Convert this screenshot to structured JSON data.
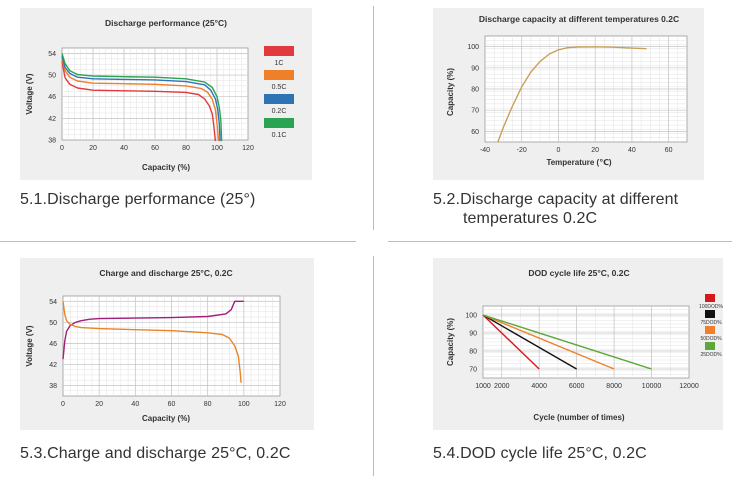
{
  "captions": {
    "c1": "5.1.Discharge performance (25°)",
    "c2_line1": "5.2.Discharge capacity at different",
    "c2_line2": "temperatures 0.2C",
    "c3": "5.3.Charge and discharge 25°C, 0.2C",
    "c4": "5.4.DOD cycle life 25°C, 0.2C"
  },
  "chart_data": [
    {
      "type": "line",
      "title": "Discharge performance (25°C)",
      "xlabel": "Capacity (%)",
      "ylabel": "Voltage (V)",
      "xlim": [
        0,
        120
      ],
      "ylim": [
        38,
        55
      ],
      "xticks": [
        0,
        20,
        40,
        60,
        80,
        100,
        120
      ],
      "yticks": [
        38,
        42,
        46,
        50,
        54
      ],
      "grid": true,
      "legend_position": "right",
      "series": [
        {
          "name": "1C",
          "color": "#e03a3e",
          "x": [
            0,
            2,
            5,
            10,
            20,
            40,
            60,
            80,
            88,
            92,
            95,
            97,
            98,
            99
          ],
          "y": [
            52.5,
            49.5,
            48.3,
            47.6,
            47.2,
            47.1,
            47.0,
            46.8,
            46.4,
            45.6,
            44.3,
            42.8,
            40.5,
            37.8
          ]
        },
        {
          "name": "0.5C",
          "color": "#f07f2a",
          "x": [
            0,
            2,
            5,
            10,
            20,
            40,
            60,
            80,
            90,
            94,
            97,
            99,
            100,
            101
          ],
          "y": [
            53.0,
            50.8,
            49.6,
            48.9,
            48.5,
            48.4,
            48.3,
            48.0,
            47.5,
            46.8,
            45.5,
            43.6,
            41.0,
            37.8
          ]
        },
        {
          "name": "0.2C",
          "color": "#2e74b5",
          "x": [
            0,
            2,
            5,
            10,
            20,
            40,
            60,
            80,
            92,
            96,
            99,
            100.5,
            101.5,
            102
          ],
          "y": [
            53.5,
            51.4,
            50.3,
            49.6,
            49.3,
            49.2,
            49.1,
            48.8,
            48.2,
            47.2,
            45.6,
            43.6,
            41.0,
            37.8
          ]
        },
        {
          "name": "0.1C",
          "color": "#2aa352",
          "x": [
            0,
            2,
            5,
            10,
            20,
            40,
            60,
            80,
            92,
            97,
            100,
            101.5,
            102.5,
            103
          ],
          "y": [
            54.0,
            52.1,
            50.8,
            50.1,
            49.8,
            49.7,
            49.6,
            49.3,
            48.7,
            47.7,
            46.0,
            44.0,
            41.5,
            37.8
          ]
        }
      ]
    },
    {
      "type": "line",
      "title": "Discharge capacity at different temperatures 0.2C",
      "xlabel": "Temperature (℃)",
      "ylabel": "Capacity (%)",
      "xlim": [
        -40,
        70
      ],
      "ylim": [
        55,
        105
      ],
      "xticks": [
        -40,
        -20,
        0,
        20,
        40,
        60
      ],
      "yticks": [
        60,
        70,
        80,
        90,
        100
      ],
      "grid": true,
      "series": [
        {
          "color": "#c9a05a",
          "x": [
            -33,
            -30,
            -25,
            -20,
            -15,
            -10,
            -5,
            0,
            5,
            10,
            20,
            30,
            40,
            48
          ],
          "y": [
            55,
            62,
            72,
            81,
            88,
            93,
            96.5,
            98.5,
            99.5,
            99.8,
            99.9,
            99.7,
            99.3,
            99.0
          ]
        }
      ]
    },
    {
      "type": "line",
      "title": "Charge and discharge 25°C, 0.2C",
      "xlabel": "Capacity (%)",
      "ylabel": "Voltage (V)",
      "xlim": [
        0,
        120
      ],
      "ylim": [
        36,
        55
      ],
      "xticks": [
        0,
        20,
        40,
        60,
        80,
        100,
        120
      ],
      "yticks": [
        38,
        42,
        46,
        50,
        54
      ],
      "grid": true,
      "series": [
        {
          "color": "#a11e79",
          "x": [
            0,
            1,
            2,
            4,
            7,
            10,
            15,
            20,
            40,
            60,
            80,
            90,
            93,
            95,
            100
          ],
          "y": [
            43.0,
            46.5,
            48.3,
            49.4,
            50.0,
            50.3,
            50.6,
            50.7,
            50.8,
            50.9,
            51.1,
            51.6,
            52.4,
            54.0,
            54.0
          ]
        },
        {
          "color": "#e8842a",
          "x": [
            0,
            1,
            2,
            4,
            7,
            10,
            15,
            20,
            40,
            60,
            80,
            88,
            92,
            95,
            97,
            98,
            98.5
          ],
          "y": [
            54.0,
            51.5,
            50.3,
            49.6,
            49.2,
            49.0,
            48.9,
            48.8,
            48.6,
            48.4,
            48.0,
            47.7,
            47.0,
            45.5,
            43.5,
            40.5,
            38.5
          ]
        }
      ]
    },
    {
      "type": "line",
      "title": "DOD cycle life 25°C, 0.2C",
      "xlabel": "Cycle (number of times)",
      "ylabel": "Capacity (%)",
      "xlim": [
        1000,
        12000
      ],
      "ylim": [
        65,
        105
      ],
      "xticks": [
        2000,
        4000,
        6000,
        8000,
        10000,
        12000
      ],
      "xtick_labels": [
        "2000",
        "4000",
        "6000",
        "8000",
        "10000",
        "12000"
      ],
      "yticks": [
        70,
        80,
        90,
        100
      ],
      "first_tick_label": "1000",
      "grid": true,
      "legend_position": "right",
      "series": [
        {
          "name": "100DOD%",
          "color": "#d7191c",
          "x": [
            1000,
            4000
          ],
          "y": [
            100,
            70
          ]
        },
        {
          "name": "75DOD%",
          "color": "#111111",
          "x": [
            1000,
            6000
          ],
          "y": [
            100,
            70
          ]
        },
        {
          "name": "50DOD%",
          "color": "#f07f2a",
          "x": [
            1000,
            8000
          ],
          "y": [
            100,
            70
          ]
        },
        {
          "name": "25DOD%",
          "color": "#5aa83a",
          "x": [
            1000,
            10000
          ],
          "y": [
            100,
            70
          ]
        }
      ]
    }
  ]
}
